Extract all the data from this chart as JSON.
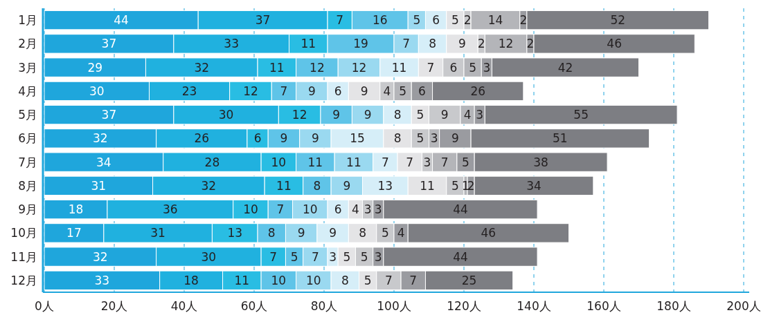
{
  "chart_data": {
    "type": "bar",
    "orientation": "horizontal",
    "stacked": true,
    "data_labels": true,
    "grid": "x",
    "categories": [
      "1月",
      "2月",
      "3月",
      "4月",
      "5月",
      "6月",
      "7月",
      "8月",
      "9月",
      "10月",
      "11月",
      "12月"
    ],
    "xlim": [
      0,
      200
    ],
    "xticks": [
      {
        "value": 0,
        "label": "0人"
      },
      {
        "value": 20,
        "label": "20人"
      },
      {
        "value": 40,
        "label": "40人"
      },
      {
        "value": 60,
        "label": "60人"
      },
      {
        "value": 80,
        "label": "80人"
      },
      {
        "value": 100,
        "label": "100人"
      },
      {
        "value": 120,
        "label": "120人"
      },
      {
        "value": 140,
        "label": "140人"
      },
      {
        "value": 160,
        "label": "160人"
      },
      {
        "value": 180,
        "label": "180人"
      },
      {
        "value": 200,
        "label": "200人"
      }
    ],
    "series": [
      {
        "color": "#1fa6dc",
        "values": [
          44,
          37,
          29,
          30,
          37,
          32,
          34,
          31,
          18,
          17,
          32,
          33
        ]
      },
      {
        "color": "#20b1df",
        "values": [
          37,
          33,
          32,
          23,
          30,
          26,
          28,
          32,
          36,
          31,
          30,
          18
        ]
      },
      {
        "color": "#29bde3",
        "values": [
          7,
          11,
          11,
          12,
          12,
          6,
          10,
          11,
          10,
          13,
          7,
          11
        ]
      },
      {
        "color": "#5fc4e8",
        "values": [
          16,
          19,
          12,
          7,
          9,
          9,
          11,
          8,
          7,
          8,
          5,
          10
        ]
      },
      {
        "color": "#9ad9f0",
        "values": [
          5,
          7,
          12,
          9,
          9,
          9,
          11,
          9,
          10,
          9,
          7,
          10
        ]
      },
      {
        "color": "#d6eef8",
        "values": [
          6,
          8,
          11,
          6,
          8,
          15,
          7,
          13,
          6,
          9,
          3,
          8
        ]
      },
      {
        "color": "#e4e4e6",
        "values": [
          5,
          9,
          7,
          9,
          5,
          8,
          7,
          11,
          4,
          8,
          5,
          5
        ]
      },
      {
        "color": "#c8c9cc",
        "values": [
          2,
          2,
          6,
          4,
          9,
          5,
          3,
          5,
          3,
          5,
          5,
          7
        ]
      },
      {
        "color": "#b4b5b9",
        "values": [
          14,
          12,
          5,
          5,
          4,
          3,
          7,
          1,
          null,
          null,
          null,
          null
        ]
      },
      {
        "color": "#9a9ba0",
        "values": [
          2,
          2,
          3,
          6,
          3,
          9,
          5,
          2,
          3,
          4,
          3,
          7
        ]
      },
      {
        "color": "#7d7e83",
        "values": [
          52,
          46,
          42,
          26,
          55,
          51,
          38,
          34,
          44,
          46,
          44,
          25
        ]
      }
    ]
  }
}
